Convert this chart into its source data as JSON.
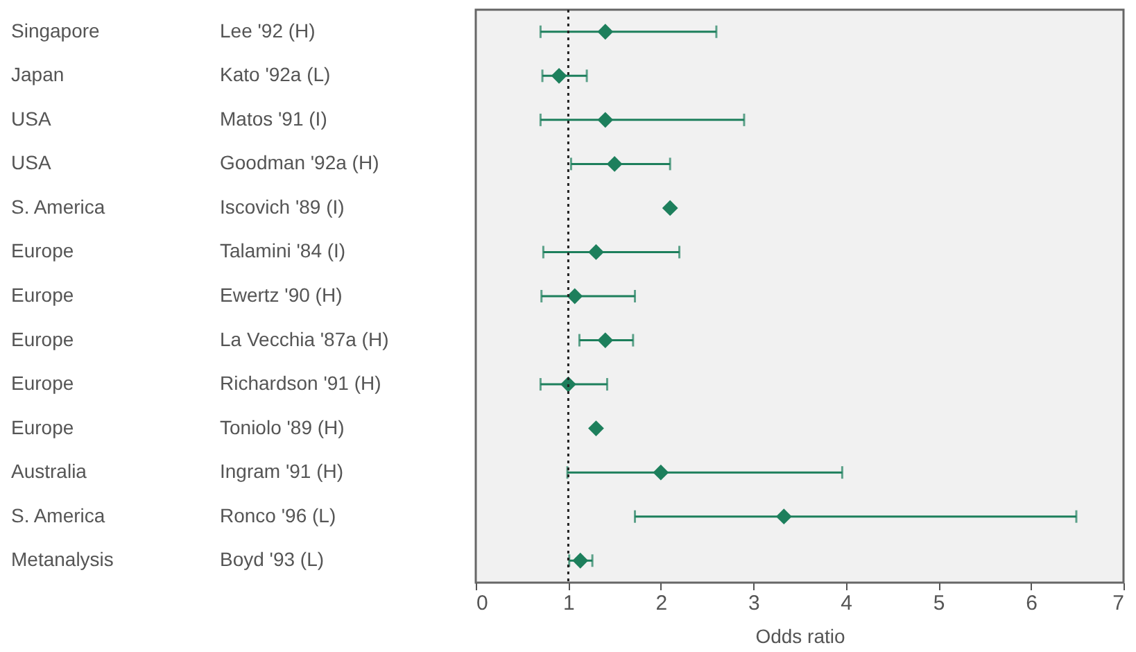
{
  "chart_data": {
    "type": "scatter",
    "orientation": "horizontal",
    "xlabel": "Odds ratio",
    "categories": [
      "Lee '92 (H)",
      "Kato '92a (L)",
      "Matos '91 (I)",
      "Goodman '92a (H)",
      "Iscovich '89 (I)",
      "Talamini '84 (I)",
      "Ewertz '90 (H)",
      "La Vecchia '87a (H)",
      "Richardson '91 (H)",
      "Toniolo '89 (H)",
      "Ingram '91 (H)",
      "Ronco '96 (L)",
      "Boyd '93 (L)"
    ],
    "annotations": [
      "Singapore",
      "Japan",
      "USA",
      "USA",
      "S. America",
      "Europe",
      "Europe",
      "Europe",
      "Europe",
      "Europe",
      "Australia",
      "S. America",
      "Metanalysis"
    ],
    "series": [
      {
        "color": "#1d7f5c",
        "values": [
          1.4,
          0.9,
          1.4,
          1.5,
          2.1,
          1.3,
          1.07,
          1.4,
          1.0,
          1.3,
          2.0,
          3.33,
          1.13
        ],
        "errors": [
          [
            0.7,
            2.6
          ],
          [
            0.72,
            1.2
          ],
          [
            0.7,
            2.9
          ],
          [
            1.03,
            2.1
          ],
          null,
          [
            0.73,
            2.2
          ],
          [
            0.71,
            1.72
          ],
          [
            1.12,
            1.7
          ],
          [
            0.7,
            1.42
          ],
          null,
          [
            0.99,
            3.96
          ],
          [
            1.72,
            6.49
          ],
          [
            1.01,
            1.26
          ]
        ]
      }
    ],
    "xlim": [
      0,
      7
    ],
    "xticks": [
      0,
      1,
      2,
      3,
      4,
      5,
      6,
      7
    ],
    "marker": "diamond",
    "grid": false,
    "ref_lines": [
      {
        "axis": "x",
        "value": 1,
        "line_style": "dotted",
        "color": "#222222"
      }
    ]
  }
}
